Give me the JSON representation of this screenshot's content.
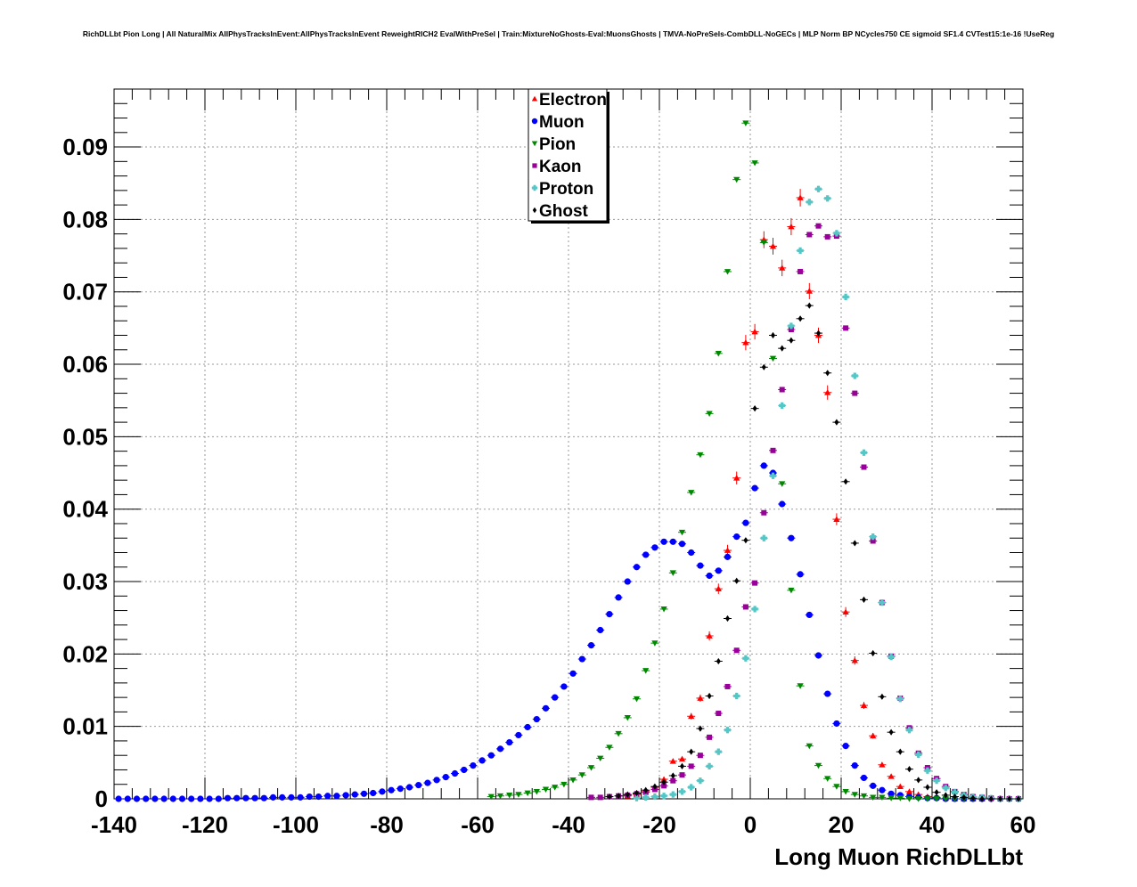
{
  "chart_data": {
    "type": "scatter",
    "title": "RichDLLbt Pion Long | All NaturalMix AllPhysTracksInEvent:AllPhysTracksInEvent ReweightRICH2 EvalWithPreSel | Train:MixtureNoGhosts-Eval:MuonsGhosts | TMVA-NoPreSels-CombDLL-NoGECs | MLP Norm BP NCycles750 CE sigmoid SF1.4 CVTest15:1e-16 !UseReg",
    "xlabel": "Long Muon RichDLLbt",
    "ylabel": "",
    "xlim": [
      -140,
      60
    ],
    "ylim": [
      0,
      0.098
    ],
    "xticks": [
      -140,
      -120,
      -100,
      -80,
      -60,
      -40,
      -20,
      0,
      20,
      40,
      60
    ],
    "xtick_labels": [
      "-140",
      "-120",
      "-100",
      "-80",
      "-60",
      "-40",
      "-20",
      "0",
      "20",
      "40",
      "60"
    ],
    "yticks": [
      0,
      0.01,
      0.02,
      0.03,
      0.04,
      0.05,
      0.06,
      0.07,
      0.08,
      0.09
    ],
    "ytick_labels": [
      "0",
      "0.01",
      "0.02",
      "0.03",
      "0.04",
      "0.05",
      "0.06",
      "0.07",
      "0.08",
      "0.09"
    ],
    "grid": true,
    "legend_position": "top-center",
    "series": [
      {
        "name": "Electron",
        "color": "#ff0000",
        "marker": "triangle-up",
        "x": [
          -27,
          -25,
          -23,
          -21,
          -19,
          -17,
          -15,
          -13,
          -11,
          -9,
          -7,
          -5,
          -3,
          -1,
          1,
          3,
          5,
          7,
          9,
          11,
          13,
          15,
          17,
          19,
          21,
          23,
          25,
          27,
          29,
          31,
          33,
          35,
          37,
          39,
          41,
          43,
          45,
          47,
          49,
          51
        ],
        "y": [
          0.0004,
          0.0006,
          0.001,
          0.0016,
          0.0027,
          0.0052,
          0.0055,
          0.0114,
          0.0139,
          0.0225,
          0.029,
          0.0343,
          0.0443,
          0.063,
          0.0645,
          0.0772,
          0.0763,
          0.0733,
          0.079,
          0.083,
          0.0701,
          0.064,
          0.0561,
          0.0386,
          0.0258,
          0.0191,
          0.0129,
          0.0087,
          0.0047,
          0.0031,
          0.0017,
          0.001,
          0.0006,
          0.0003,
          0.0002,
          0.0001,
          0,
          0,
          0,
          0
        ]
      },
      {
        "name": "Muon",
        "color": "#0000ff",
        "marker": "circle",
        "x": [
          -141,
          -139,
          -137,
          -135,
          -133,
          -131,
          -129,
          -127,
          -125,
          -123,
          -121,
          -119,
          -117,
          -115,
          -113,
          -111,
          -109,
          -107,
          -105,
          -103,
          -101,
          -99,
          -97,
          -95,
          -93,
          -91,
          -89,
          -87,
          -85,
          -83,
          -81,
          -79,
          -77,
          -75,
          -73,
          -71,
          -69,
          -67,
          -65,
          -63,
          -61,
          -59,
          -57,
          -55,
          -53,
          -51,
          -49,
          -47,
          -45,
          -43,
          -41,
          -39,
          -37,
          -35,
          -33,
          -31,
          -29,
          -27,
          -25,
          -23,
          -21,
          -19,
          -17,
          -15,
          -13,
          -11,
          -9,
          -7,
          -5,
          -3,
          -1,
          1,
          3,
          5,
          7,
          9,
          11,
          13,
          15,
          17,
          19,
          21,
          23,
          25,
          27,
          29,
          31,
          33,
          35,
          37,
          39,
          41,
          43,
          45,
          47,
          49,
          51,
          53,
          55,
          57,
          59
        ],
        "y": [
          0,
          0,
          0,
          0,
          0,
          0,
          0,
          0,
          0,
          0,
          0,
          0,
          0,
          0.0001,
          0.0001,
          0.0001,
          0.0001,
          0.0001,
          0.0002,
          0.0002,
          0.0002,
          0.0002,
          0.0003,
          0.0003,
          0.0004,
          0.0004,
          0.0005,
          0.0006,
          0.0007,
          0.0008,
          0.001,
          0.0012,
          0.0014,
          0.0016,
          0.0019,
          0.0022,
          0.0026,
          0.003,
          0.0035,
          0.004,
          0.0046,
          0.0053,
          0.006,
          0.0069,
          0.0078,
          0.0088,
          0.0099,
          0.011,
          0.0125,
          0.014,
          0.0155,
          0.0173,
          0.0193,
          0.0212,
          0.0233,
          0.0255,
          0.0278,
          0.03,
          0.032,
          0.0337,
          0.0347,
          0.0355,
          0.0355,
          0.0352,
          0.034,
          0.0322,
          0.0308,
          0.0315,
          0.0334,
          0.0362,
          0.0381,
          0.0429,
          0.046,
          0.045,
          0.0407,
          0.036,
          0.031,
          0.0254,
          0.0198,
          0.0145,
          0.0104,
          0.0073,
          0.0046,
          0.0029,
          0.0018,
          0.0012,
          0.0007,
          0.0005,
          0.0003,
          0.0002,
          0.0001,
          0.0001,
          0,
          0,
          0,
          0,
          0,
          0,
          0,
          0,
          0
        ]
      },
      {
        "name": "Pion",
        "color": "#008800",
        "marker": "triangle-down",
        "x": [
          -57,
          -55,
          -53,
          -51,
          -49,
          -47,
          -45,
          -43,
          -41,
          -39,
          -37,
          -35,
          -33,
          -31,
          -29,
          -27,
          -25,
          -23,
          -21,
          -19,
          -17,
          -15,
          -13,
          -11,
          -9,
          -7,
          -5,
          -3,
          -1,
          1,
          3,
          5,
          7,
          9,
          11,
          13,
          15,
          17,
          19,
          21,
          23,
          25,
          27,
          29,
          31,
          33,
          35,
          37,
          39,
          41,
          43,
          45,
          47,
          49
        ],
        "y": [
          0.0003,
          0.0004,
          0.0005,
          0.0006,
          0.0008,
          0.001,
          0.0013,
          0.0016,
          0.002,
          0.0026,
          0.0033,
          0.0043,
          0.0056,
          0.0071,
          0.009,
          0.0112,
          0.0138,
          0.0177,
          0.0215,
          0.0262,
          0.0312,
          0.0368,
          0.0423,
          0.0475,
          0.0532,
          0.0615,
          0.0728,
          0.0855,
          0.0933,
          0.0878,
          0.0768,
          0.0608,
          0.0435,
          0.0288,
          0.0156,
          0.0073,
          0.0046,
          0.0028,
          0.0017,
          0.001,
          0.0006,
          0.0004,
          0.0002,
          0.0002,
          0.0001,
          0.0001,
          0,
          0,
          0,
          0,
          0,
          0,
          0,
          0
        ]
      },
      {
        "name": "Kaon",
        "color": "#990099",
        "marker": "square",
        "x": [
          -35,
          -33,
          -31,
          -29,
          -27,
          -25,
          -23,
          -21,
          -19,
          -17,
          -15,
          -13,
          -11,
          -9,
          -7,
          -5,
          -3,
          -1,
          1,
          3,
          5,
          7,
          9,
          11,
          13,
          15,
          17,
          19,
          21,
          23,
          25,
          27,
          29,
          31,
          33,
          35,
          37,
          39,
          41,
          43,
          45,
          47,
          49,
          51,
          53,
          55,
          57,
          59
        ],
        "y": [
          0.0002,
          0.0002,
          0.0003,
          0.0004,
          0.0005,
          0.0007,
          0.0009,
          0.0013,
          0.0018,
          0.0025,
          0.0033,
          0.0045,
          0.006,
          0.0085,
          0.0118,
          0.0155,
          0.0205,
          0.0265,
          0.0298,
          0.0395,
          0.0481,
          0.0565,
          0.0648,
          0.0728,
          0.0779,
          0.0791,
          0.0776,
          0.0777,
          0.065,
          0.056,
          0.0458,
          0.0356,
          0.0271,
          0.0197,
          0.0139,
          0.0098,
          0.0063,
          0.0043,
          0.0028,
          0.0017,
          0.001,
          0.0006,
          0.0003,
          0.0002,
          0.0001,
          0,
          0,
          0
        ]
      },
      {
        "name": "Proton",
        "color": "#55c6c6",
        "marker": "cross",
        "x": [
          -25,
          -23,
          -21,
          -19,
          -17,
          -15,
          -13,
          -11,
          -9,
          -7,
          -5,
          -3,
          -1,
          1,
          3,
          5,
          7,
          9,
          11,
          13,
          15,
          17,
          19,
          21,
          23,
          25,
          27,
          29,
          31,
          33,
          35,
          37,
          39,
          41,
          43,
          45,
          47,
          49,
          51,
          53,
          55,
          57,
          59
        ],
        "y": [
          0.0001,
          0.0002,
          0.0003,
          0.0004,
          0.0006,
          0.001,
          0.0016,
          0.0025,
          0.0045,
          0.0065,
          0.0095,
          0.0142,
          0.0194,
          0.0262,
          0.036,
          0.0446,
          0.0543,
          0.0653,
          0.0757,
          0.0824,
          0.0842,
          0.0829,
          0.0781,
          0.0693,
          0.0584,
          0.0478,
          0.0362,
          0.0271,
          0.0196,
          0.0138,
          0.0095,
          0.0061,
          0.0039,
          0.0025,
          0.0015,
          0.0009,
          0.0005,
          0.0003,
          0.0002,
          0.0001,
          0,
          0,
          0
        ]
      },
      {
        "name": "Ghost",
        "color": "#000000",
        "marker": "diamond",
        "x": [
          -31,
          -29,
          -27,
          -25,
          -23,
          -21,
          -19,
          -17,
          -15,
          -13,
          -11,
          -9,
          -7,
          -5,
          -3,
          -1,
          1,
          3,
          5,
          7,
          9,
          11,
          13,
          15,
          17,
          19,
          21,
          23,
          25,
          27,
          29,
          31,
          33,
          35,
          37,
          39,
          41,
          43,
          45,
          47,
          49,
          51,
          53,
          55,
          57,
          59
        ],
        "y": [
          0.0003,
          0.0004,
          0.0006,
          0.0008,
          0.0012,
          0.0017,
          0.0023,
          0.0032,
          0.0045,
          0.0065,
          0.0097,
          0.0142,
          0.019,
          0.0249,
          0.0301,
          0.0357,
          0.0539,
          0.0596,
          0.064,
          0.0622,
          0.0633,
          0.0663,
          0.0681,
          0.0643,
          0.0588,
          0.052,
          0.0438,
          0.0353,
          0.0275,
          0.0201,
          0.0141,
          0.0092,
          0.0065,
          0.0041,
          0.0026,
          0.0016,
          0.0009,
          0.0005,
          0.0003,
          0.0002,
          0.0001,
          0,
          0,
          0,
          0,
          0
        ]
      }
    ]
  }
}
